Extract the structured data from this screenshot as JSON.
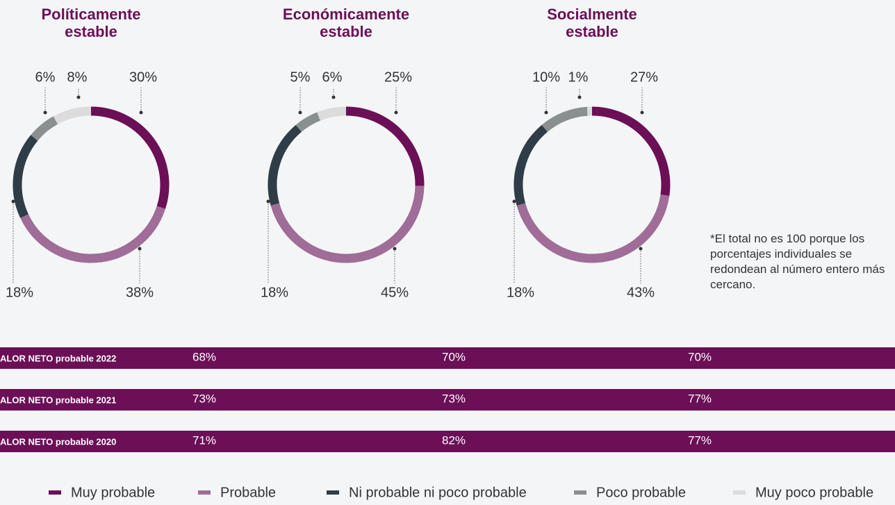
{
  "chart_data": [
    {
      "type": "pie",
      "title": "Políticamente estable",
      "values": [
        30,
        38,
        18,
        6,
        8
      ],
      "value_labels": [
        "30%",
        "38%",
        "18%",
        "6%",
        "8%"
      ]
    },
    {
      "type": "pie",
      "title": "Económicamente estable",
      "values": [
        25,
        45,
        18,
        5,
        6
      ],
      "value_labels": [
        "25%",
        "45%",
        "18%",
        "5%",
        "6%"
      ]
    },
    {
      "type": "pie",
      "title": "Socialmente estable",
      "values": [
        27,
        43,
        18,
        10,
        1
      ],
      "value_labels": [
        "27%",
        "43%",
        "18%",
        "10%",
        "1%"
      ]
    }
  ],
  "legend": {
    "labels": [
      "Muy probable",
      "Probable",
      "Ni probable ni poco probable",
      "Poco probable",
      "Muy poco probable"
    ],
    "colors": [
      "#6b0f57",
      "#a06c98",
      "#2f3d48",
      "#8a8f90",
      "#dcdcdc"
    ]
  },
  "footnote": "*El total no es 100 porque los porcentajes individuales se redondean al número entero más cercano.",
  "net_value": {
    "color": "#6b0f57",
    "rows": [
      {
        "label": "ALOR NETO probable 2022",
        "values": [
          "68%",
          "70%",
          "70%"
        ]
      },
      {
        "label": "ALOR NETO probable 2021",
        "values": [
          "73%",
          "73%",
          "77%"
        ]
      },
      {
        "label": "ALOR NETO probable 2020",
        "values": [
          "71%",
          "82%",
          "77%"
        ]
      }
    ]
  }
}
